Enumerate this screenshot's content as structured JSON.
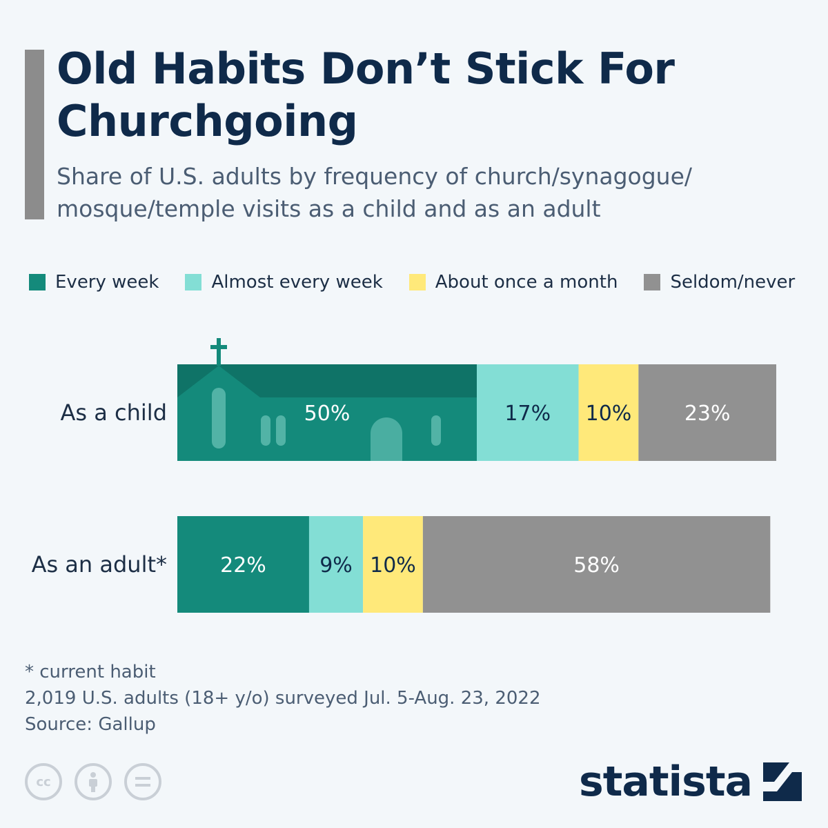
{
  "title": "Old Habits Don’t Stick For Churchgoing",
  "subtitle": "Share of U.S. adults by frequency of church/synagogue/ mosque/temple visits as a child and as an adult",
  "legend": [
    {
      "label": "Every week",
      "color": "#148a7b"
    },
    {
      "label": "Almost every week",
      "color": "#83ded5"
    },
    {
      "label": "About once a month",
      "color": "#ffe97a"
    },
    {
      "label": "Seldom/never",
      "color": "#919191"
    }
  ],
  "chart_data": {
    "type": "bar",
    "orientation": "horizontal",
    "stacked": true,
    "categories": [
      "As a child",
      "As an adult*"
    ],
    "series": [
      {
        "name": "Every week",
        "values": [
          50,
          22
        ],
        "color": "#148a7b",
        "label_color": "#ffffff"
      },
      {
        "name": "Almost every week",
        "values": [
          17,
          9
        ],
        "color": "#83ded5",
        "label_color": "#0f2a4a"
      },
      {
        "name": "About once a month",
        "values": [
          10,
          10
        ],
        "color": "#ffe97a",
        "label_color": "#0f2a4a"
      },
      {
        "name": "Seldom/never",
        "values": [
          23,
          58
        ],
        "color": "#919191",
        "label_color": "#ffffff"
      }
    ],
    "value_suffix": "%",
    "legend_position": "top",
    "grid": false
  },
  "notes": {
    "footnote": "* current habit",
    "survey": "2,019 U.S. adults (18+ y/o) surveyed Jul. 5-Aug. 23, 2022",
    "source": "Source: Gallup"
  },
  "license_icons": [
    "cc-icon",
    "attribution-icon",
    "no-derivatives-icon"
  ],
  "brand": {
    "name": "statista",
    "color": "#0f2a4a"
  }
}
